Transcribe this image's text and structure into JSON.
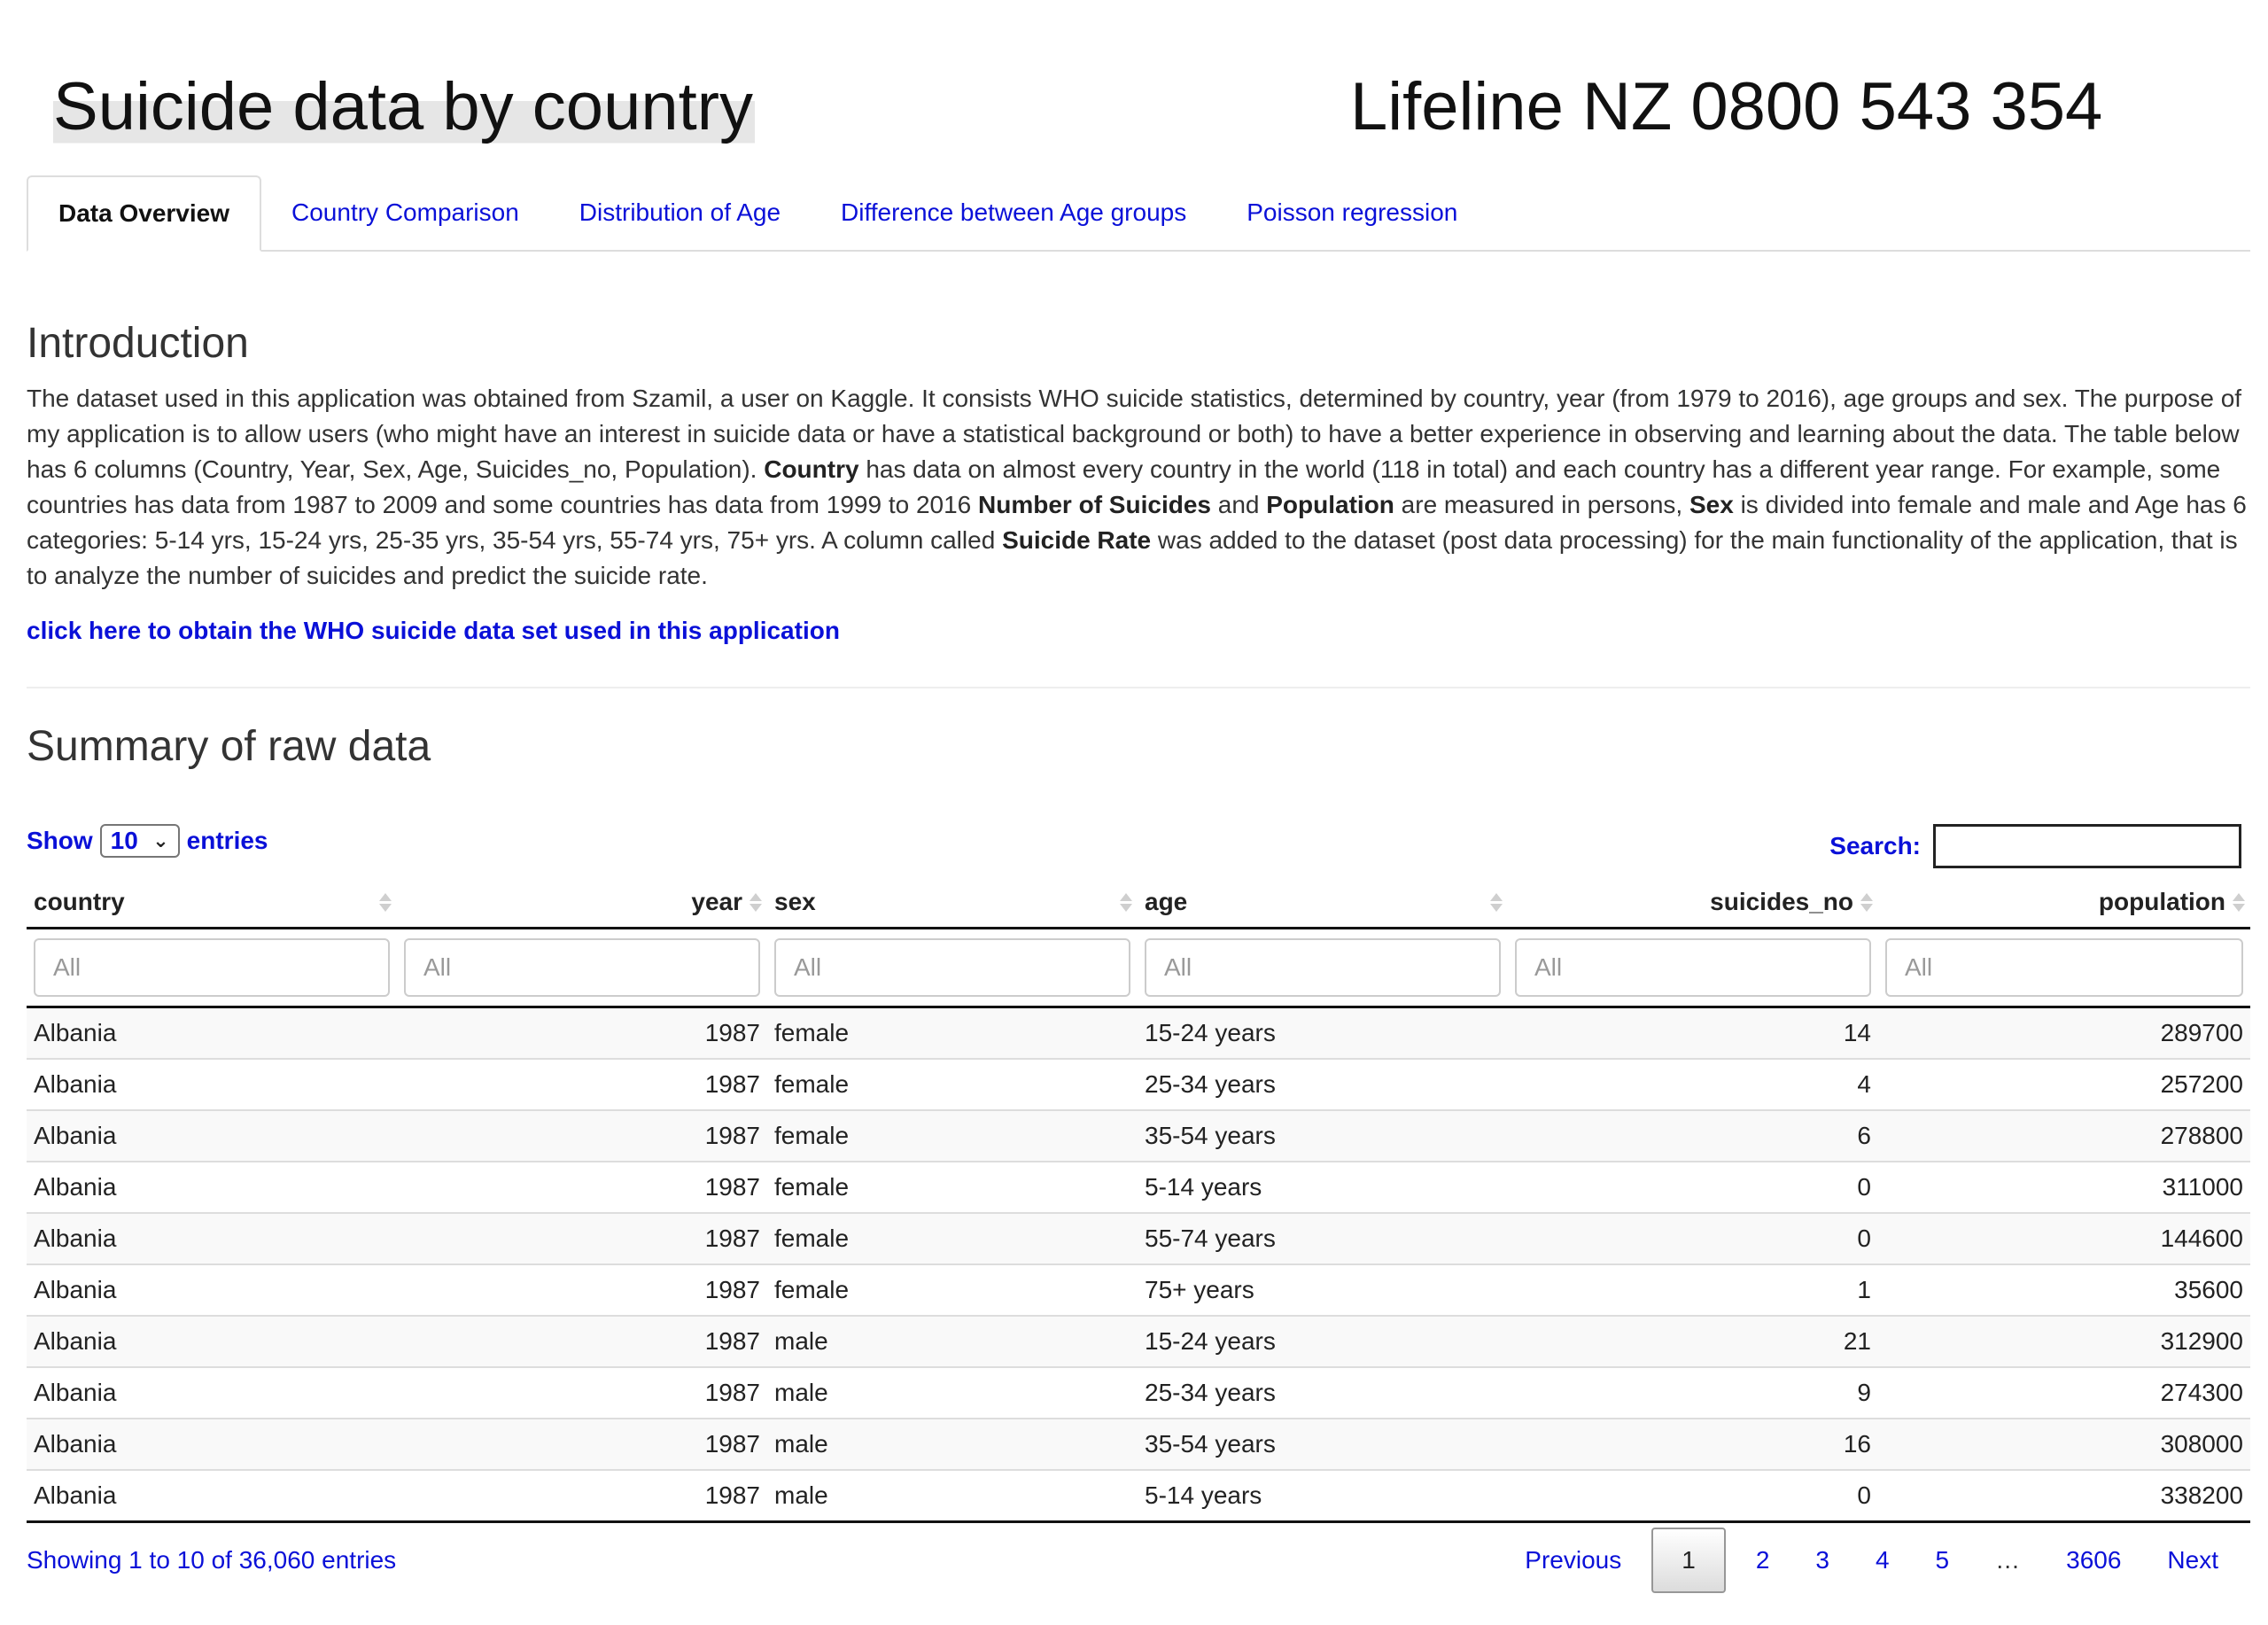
{
  "header": {
    "title": "Suicide data by country",
    "lifeline": "Lifeline NZ 0800 543 354"
  },
  "tabs": [
    {
      "label": "Data Overview",
      "active": true
    },
    {
      "label": "Country Comparison"
    },
    {
      "label": "Distribution of Age"
    },
    {
      "label": "Difference between Age groups"
    },
    {
      "label": "Poisson regression"
    }
  ],
  "intro": {
    "heading": "Introduction",
    "p1": "The dataset used in this application was obtained from Szamil, a user on Kaggle. It consists WHO suicide statistics, determined by country, year (from 1979 to 2016), age groups and sex. The purpose of my application is to allow users (who might have an interest in suicide data or have a statistical background or both) to have a better experience in observing and learning about the data. The table below has 6 columns (Country, Year, Sex, Age, Suicides_no, Population). ",
    "b_country": "Country",
    "p2": " has data on almost every country in the world (118 in total) and each country has a different year range. For example, some countries has data from 1987 to 2009 and some countries has data from 1999 to 2016 ",
    "b_suicides": "Number of Suicides",
    "p3": " and ",
    "b_population": "Population",
    "p4": " are measured in persons, ",
    "b_sex": "Sex",
    "p5": " is divided into female and male and Age has 6 categories: 5-14 yrs, 15-24 yrs, 25-35 yrs, 35-54 yrs, 55-74 yrs, 75+ yrs. A column called ",
    "b_rate": "Suicide Rate",
    "p6": " was added to the dataset (post data processing) for the main functionality of the application, that is to analyze the number of suicides and predict the suicide rate.",
    "link": "click here to obtain the WHO suicide data set used in this application"
  },
  "summary": {
    "heading": "Summary of raw data",
    "show_label": "Show",
    "entries_value": "10",
    "entries_label": "entries",
    "search_label": "Search:",
    "filter_placeholder": "All",
    "columns": [
      "country",
      "year",
      "sex",
      "age",
      "suicides_no",
      "population"
    ],
    "rows": [
      [
        "Albania",
        "1987",
        "female",
        "15-24 years",
        "14",
        "289700"
      ],
      [
        "Albania",
        "1987",
        "female",
        "25-34 years",
        "4",
        "257200"
      ],
      [
        "Albania",
        "1987",
        "female",
        "35-54 years",
        "6",
        "278800"
      ],
      [
        "Albania",
        "1987",
        "female",
        "5-14 years",
        "0",
        "311000"
      ],
      [
        "Albania",
        "1987",
        "female",
        "55-74 years",
        "0",
        "144600"
      ],
      [
        "Albania",
        "1987",
        "female",
        "75+ years",
        "1",
        "35600"
      ],
      [
        "Albania",
        "1987",
        "male",
        "15-24 years",
        "21",
        "312900"
      ],
      [
        "Albania",
        "1987",
        "male",
        "25-34 years",
        "9",
        "274300"
      ],
      [
        "Albania",
        "1987",
        "male",
        "35-54 years",
        "16",
        "308000"
      ],
      [
        "Albania",
        "1987",
        "male",
        "5-14 years",
        "0",
        "338200"
      ]
    ],
    "info": "Showing 1 to 10 of 36,060 entries",
    "pager": {
      "previous": "Previous",
      "pages": [
        "1",
        "2",
        "3",
        "4",
        "5"
      ],
      "current": "1",
      "ellipsis": "…",
      "last": "3606",
      "next": "Next"
    }
  },
  "colors": {
    "link": "#0a10d8",
    "border": "#dddddd",
    "stripe": "#f9f9f9"
  }
}
